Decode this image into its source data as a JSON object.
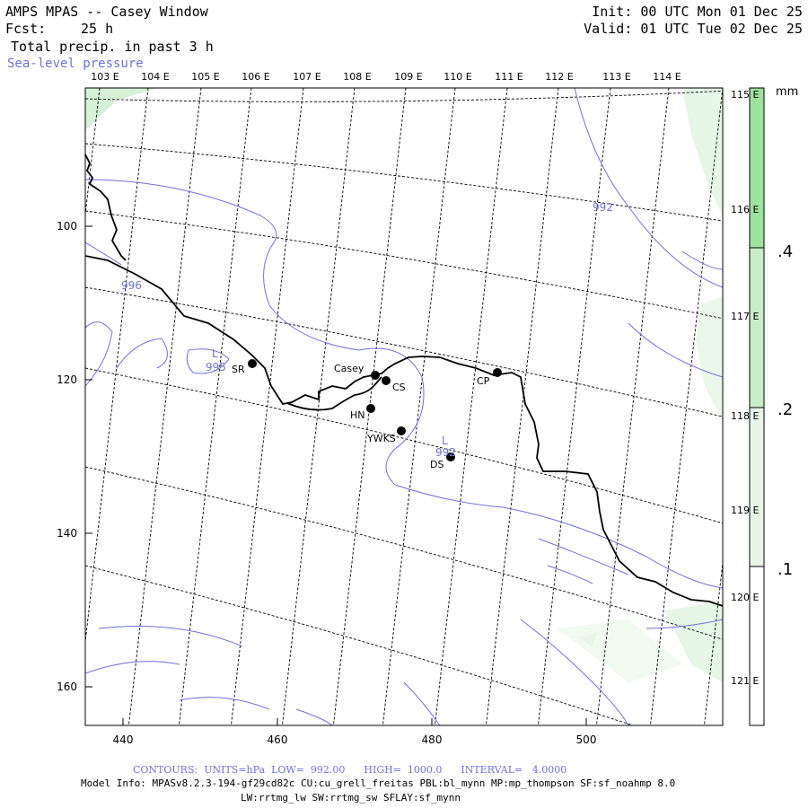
{
  "header": {
    "title": "AMPS MPAS -- Casey Window",
    "fcst_label": "Fcst:",
    "fcst_value": "25 h",
    "field": "Total precip. in past 3 h",
    "overlay": "Sea-level pressure",
    "init": "Init: 00 UTC Mon 01 Dec 25",
    "valid": "Valid: 01 UTC Tue 02 Dec 25"
  },
  "colors": {
    "slp_contour": "#6f6fe0",
    "coast": "#000000",
    "graticule": "#000000",
    "precip_light": "#e6f7e6",
    "precip_mid": "#c8eec8",
    "precip_heavy": "#9de39d"
  },
  "map": {
    "lon_labels": [
      "103 E",
      "104 E",
      "105 E",
      "106 E",
      "107 E",
      "108 E",
      "109 E",
      "110 E",
      "111 E",
      "112 E",
      "113 E",
      "114 E"
    ],
    "lat_labels": [
      "115 E",
      "116 E",
      "117 E",
      "118 E",
      "119 E",
      "120 E",
      "121 E"
    ],
    "x_ticks": [
      "440",
      "460",
      "480",
      "500"
    ],
    "y_ticks": [
      "100",
      "120",
      "140",
      "160"
    ],
    "stations": [
      {
        "id": "SR",
        "label": "SR"
      },
      {
        "id": "Casey",
        "label": "Casey"
      },
      {
        "id": "CS",
        "label": "CS"
      },
      {
        "id": "CP",
        "label": "CP"
      },
      {
        "id": "HN",
        "label": "HN"
      },
      {
        "id": "YWKS",
        "label": "YWKS"
      },
      {
        "id": "DS",
        "label": "DS"
      }
    ],
    "contour_labels": {
      "c992": "992",
      "c996": "996",
      "low1_L": "L",
      "low1_val": "995",
      "low2_L": "L",
      "low2_val": "992"
    }
  },
  "colorbar": {
    "units": "mm",
    "levels": [
      ".1",
      ".2",
      ".4"
    ]
  },
  "footer": {
    "contours": "CONTOURS:  UNITS=hPa  LOW=  992.00      HIGH=  1000.0      INTERVAL=   4.0000",
    "model_info": "Model Info: MPASv8.2.3-194-gf29cd82c CU:cu_grell_freitas PBL:bl_mynn MP:mp_thompson SF:sf_noahmp 8.0",
    "model_info2": "LW:rrtmg_lw SW:rrtmg_sw SFLAY:sf_mynn"
  }
}
